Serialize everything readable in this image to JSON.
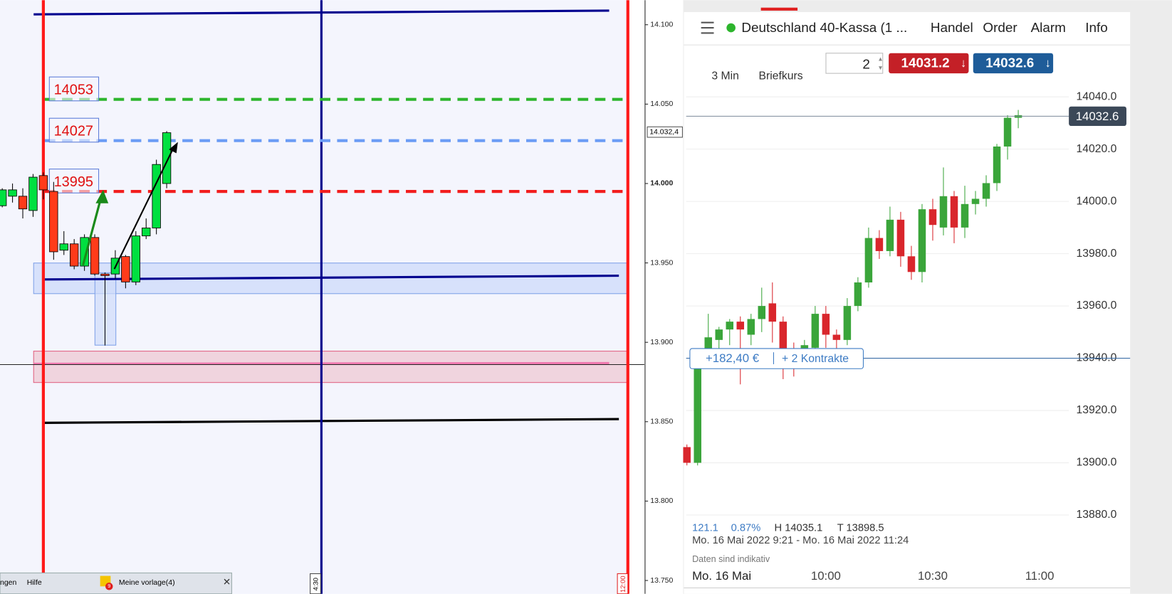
{
  "left_chart": {
    "ylim": [
      13743,
      14115
    ],
    "yticks": [
      {
        "value": 14100,
        "label": "14.100"
      },
      {
        "value": 14050,
        "label": "14.050"
      },
      {
        "value": 14000,
        "label": "14.000"
      },
      {
        "value": 13950,
        "label": "13.950"
      },
      {
        "value": 13900,
        "label": "13.900"
      },
      {
        "value": 13850,
        "label": "13.850"
      },
      {
        "value": 13800,
        "label": "13.800"
      },
      {
        "value": 13750,
        "label": "13.750"
      }
    ],
    "current_price": {
      "value": 14032.4,
      "label": "14.032,4"
    },
    "levels": [
      14053,
      14027,
      13995
    ],
    "level_colors": [
      "#2db52d",
      "#6b9cf5",
      "#f21e1e"
    ],
    "candles": {
      "open": [
        13986,
        13992,
        13992,
        13983,
        14005,
        13995,
        13958,
        13962,
        13948,
        13966,
        13943,
        13943,
        13954,
        13938,
        13967,
        13972,
        14000
      ],
      "high": [
        13997,
        14000,
        13997,
        14006,
        14007,
        14001,
        13970,
        13965,
        13968,
        13968,
        13944,
        13958,
        13955,
        13970,
        13978,
        14015,
        14033
      ],
      "low": [
        13985,
        13988,
        13978,
        13979,
        13990,
        13952,
        13955,
        13946,
        13945,
        13942,
        13898,
        13940,
        13934,
        13936,
        13965,
        13968,
        13997
      ],
      "close": [
        13996,
        13996,
        13984,
        14004,
        13996,
        13957,
        13962,
        13948,
        13966,
        13943,
        13942,
        13953,
        13938,
        13967,
        13972,
        14012,
        14032
      ],
      "up_color": "#00e040",
      "down_color": "#ff3b1a"
    },
    "time_labels": [
      "4:30",
      "12:00"
    ],
    "toolbar": {
      "menu": [
        "ngen",
        "Hilfe"
      ],
      "badge": "9",
      "template": "Meine vorlage(4)"
    }
  },
  "right_panel": {
    "instrument": "Deutschland 40-Kassa (1 ...",
    "menu": [
      "Handel",
      "Order",
      "Alarm",
      "Info"
    ],
    "timeframe": "3 Min",
    "price_type": "Briefkurs",
    "quantity": 2,
    "sell": 14031.2,
    "buy": 14032.6,
    "chart": {
      "ylim": [
        13877,
        14044
      ],
      "yticks": [
        {
          "value": 14040,
          "label": "14040.0"
        },
        {
          "value": 14020,
          "label": "14020.0"
        },
        {
          "value": 14000,
          "label": "14000.0"
        },
        {
          "value": 13980,
          "label": "13980.0"
        },
        {
          "value": 13960,
          "label": "13960.0"
        },
        {
          "value": 13940,
          "label": "13940.0"
        },
        {
          "value": 13920,
          "label": "13920.0"
        },
        {
          "value": 13900,
          "label": "13900.0"
        },
        {
          "value": 13880,
          "label": "13880.0"
        }
      ],
      "last_price": 14032.6,
      "position": {
        "price": 13940,
        "pnl": "+182,40 €",
        "contracts": "+ 2 Kontrakte"
      },
      "candles": {
        "open": [
          13906,
          13900,
          13943,
          13947,
          13951,
          13954,
          13949,
          13955,
          13961,
          13954,
          13943,
          13940,
          13944,
          13957,
          13949,
          13947,
          13960,
          13969,
          13986,
          13981,
          13993,
          13979,
          13973,
          13997,
          13990,
          14002,
          13990,
          13999,
          14001,
          14007,
          14021,
          14032
        ],
        "high": [
          13907,
          13940,
          13957,
          13952,
          13955,
          13956,
          13957,
          13967,
          13969,
          13956,
          13946,
          13947,
          13960,
          13960,
          13951,
          13963,
          13971,
          13990,
          13989,
          13998,
          13996,
          13983,
          13999,
          14001,
          14013,
          14004,
          14006,
          14004,
          14010,
          14022,
          14033,
          14035
        ],
        "low": [
          13899,
          13899,
          13938,
          13940,
          13945,
          13930,
          13945,
          13950,
          13946,
          13932,
          13933,
          13937,
          13940,
          13944,
          13942,
          13945,
          13958,
          13967,
          13978,
          13979,
          13975,
          13970,
          13969,
          13985,
          13987,
          13984,
          13986,
          13995,
          13998,
          14004,
          14016,
          14028
        ],
        "close": [
          13900,
          13936,
          13948,
          13951,
          13954,
          13951,
          13955,
          13960,
          13954,
          13943,
          13940,
          13945,
          13957,
          13949,
          13947,
          13960,
          13969,
          13986,
          13981,
          13993,
          13979,
          13973,
          13997,
          13991,
          14002,
          13990,
          13999,
          14001,
          14007,
          14021,
          14032,
          14033
        ],
        "up_color": "#3aa53a",
        "down_color": "#d9262c"
      },
      "x_labels": [
        "Mo. 16 Mai",
        "10:00",
        "10:30",
        "11:00"
      ]
    },
    "stats": {
      "change": "121.1",
      "change_pct": "0.87%",
      "high": "H 14035.1",
      "low": "T 13898.5",
      "range": "Mo. 16 Mai 2022 9:21 - Mo. 16 Mai 2022 11:24",
      "note": "Daten sind indikativ"
    }
  }
}
